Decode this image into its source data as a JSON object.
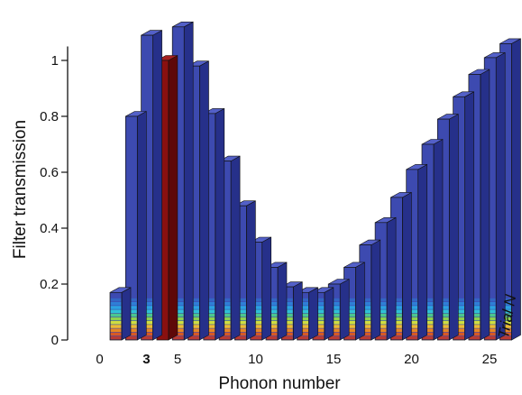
{
  "chart_data": {
    "type": "bar",
    "title": "",
    "xlabel": "Phonon number",
    "ylabel": "Filter transmission",
    "zlabel": "Trial N",
    "ylim": [
      0,
      1.1
    ],
    "x": [
      0,
      1,
      2,
      3,
      4,
      5,
      6,
      7,
      8,
      9,
      10,
      11,
      12,
      13,
      14,
      15,
      16,
      17,
      18,
      19,
      20,
      21,
      22,
      23,
      24,
      25
    ],
    "values": [
      0.17,
      0.8,
      1.09,
      1.0,
      1.12,
      0.98,
      0.81,
      0.64,
      0.48,
      0.35,
      0.26,
      0.19,
      0.17,
      0.17,
      0.2,
      0.26,
      0.34,
      0.42,
      0.51,
      0.61,
      0.7,
      0.79,
      0.87,
      0.95,
      1.01,
      1.06
    ],
    "highlight": {
      "x": 3,
      "label": "3"
    },
    "x_ticks": [
      {
        "value": 0,
        "label": "0"
      },
      {
        "value": 3,
        "label": "3"
      },
      {
        "value": 5,
        "label": "5"
      },
      {
        "value": 10,
        "label": "10"
      },
      {
        "value": 15,
        "label": "15"
      },
      {
        "value": 20,
        "label": "20"
      },
      {
        "value": 25,
        "label": "25"
      }
    ],
    "y_ticks": [
      {
        "value": 0,
        "label": "0"
      },
      {
        "value": 0.2,
        "label": "0.2"
      },
      {
        "value": 0.4,
        "label": "0.4"
      },
      {
        "value": 0.6,
        "label": "0.6"
      },
      {
        "value": 0.8,
        "label": "0.8"
      },
      {
        "value": 1,
        "label": "1"
      }
    ],
    "grid": false,
    "legend": "none",
    "colors": {
      "bar_face": "#3d4ab0",
      "bar_top": "#5360c8",
      "bar_side": "#26308a",
      "highlight_face": "#8a1010",
      "highlight_side": "#5e0808",
      "stack_bands": [
        "#c0392b",
        "#e05a1e",
        "#f08a1a",
        "#f6c12a",
        "#d7e63a",
        "#8fd84a",
        "#4ccd8d",
        "#2ec6d8",
        "#2aa6e4",
        "#2d82d8",
        "#3366c4",
        "#3d4ab0"
      ]
    }
  }
}
